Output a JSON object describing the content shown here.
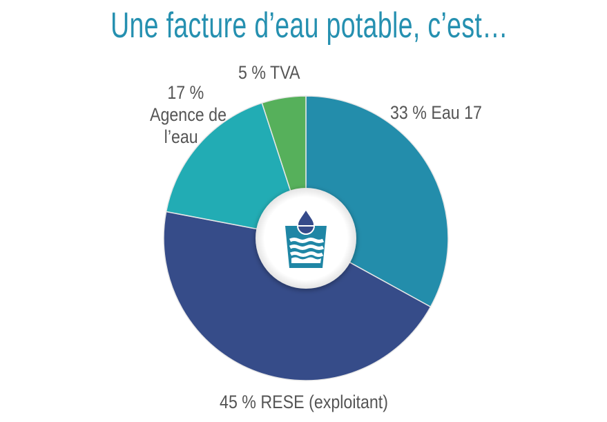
{
  "title": "Une facture d’eau potable, c’est…",
  "colors": {
    "title": "#2590b0",
    "label_text": "#555555",
    "eau17": "#238dab",
    "rese": "#364c89",
    "agence": "#22acb4",
    "tva": "#56b05b",
    "center": "#ffffff",
    "icon": "#1f86a5",
    "drop": "#354a8a"
  },
  "labels": {
    "eau17": "33 % Eau 17",
    "tva": "5 % TVA",
    "agence_line1": "17 %",
    "agence_line2": "Agence de",
    "agence_line3": "l’eau",
    "rese": "45 % RESE (exploitant)"
  },
  "center_icon": "water-glass-drop-icon",
  "chart_data": {
    "type": "pie",
    "variant": "donut",
    "title": "Une facture d’eau potable, c’est…",
    "categories": [
      "Eau 17",
      "RESE (exploitant)",
      "Agence de l’eau",
      "TVA"
    ],
    "values": [
      33,
      45,
      17,
      5
    ],
    "unit": "%",
    "start_angle": "12 o'clock",
    "direction": "clockwise",
    "colors": [
      "#238dab",
      "#364c89",
      "#22acb4",
      "#56b05b"
    ],
    "legend": "none (labels placed around slices)"
  }
}
